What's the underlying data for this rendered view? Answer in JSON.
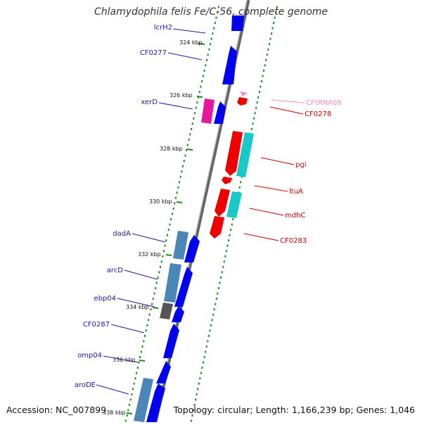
{
  "title": "Chlamydophila felis Fe/C-56, complete genome",
  "footer": {
    "accession": "Accession: NC_007899",
    "info": "Topology: circular; Length: 1,166,239 bp; Genes: 1,046"
  },
  "ticks": [
    "324 kbp",
    "326 kbp",
    "328 kbp",
    "330 kbp",
    "332 kbp",
    "334 kbp",
    "336 kbp",
    "338 kbp"
  ],
  "genes_left": [
    "lcrH2",
    "CF0277",
    "xerD",
    "dadA",
    "arcD",
    "ebp04",
    "CF0287",
    "omp04",
    "aroDE"
  ],
  "genes_right": [
    "CFtRNA09",
    "CF0278",
    "pgi",
    "ltuA",
    "mdhC",
    "CF0283"
  ],
  "colors": {
    "left_label": "#1a1aa6",
    "right_label": "#cc0000",
    "trna_label": "#f08cc0",
    "cds_forward": "#0000ee",
    "cds_reverse": "#ee0000",
    "steelblue": "#4a86b8",
    "cyan": "#19c8c8",
    "magenta": "#e6199c",
    "gray": "#555555",
    "tick": "#1a8a1a"
  }
}
